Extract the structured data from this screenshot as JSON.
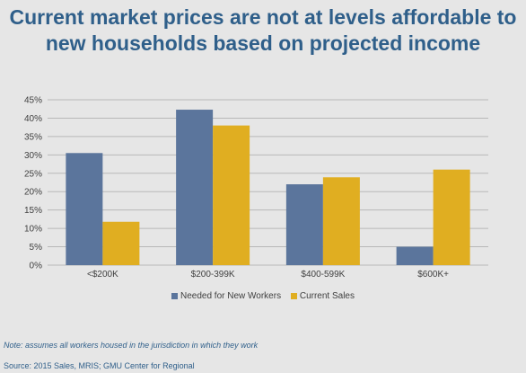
{
  "title": "Current market prices are not at levels affordable to new households based on projected income",
  "colors": {
    "background": "#e6e6e6",
    "title": "#2f5f8a",
    "series_1": "#5b759c",
    "series_2": "#e0ae21",
    "grid": "#b8b8b8"
  },
  "chart_data": {
    "type": "bar",
    "title": "",
    "xlabel": "",
    "ylabel": "",
    "categories": [
      "<$200K",
      "$200-399K",
      "$400-599K",
      "$600K+"
    ],
    "series": [
      {
        "name": "Needed for New Workers",
        "values": [
          30.5,
          42.3,
          22.0,
          5.0
        ]
      },
      {
        "name": "Current Sales",
        "values": [
          11.8,
          38.0,
          23.9,
          26.0
        ]
      }
    ],
    "ylim": [
      0,
      45
    ],
    "yticks": [
      "0%",
      "5%",
      "10%",
      "15%",
      "20%",
      "25%",
      "30%",
      "35%",
      "40%",
      "45%"
    ],
    "grid": true,
    "legend": "bottom-center"
  },
  "note": "Note: assumes all workers housed in the jurisdiction in which they work",
  "source": "Source: 2015 Sales, MRIS; GMU Center for Regional"
}
